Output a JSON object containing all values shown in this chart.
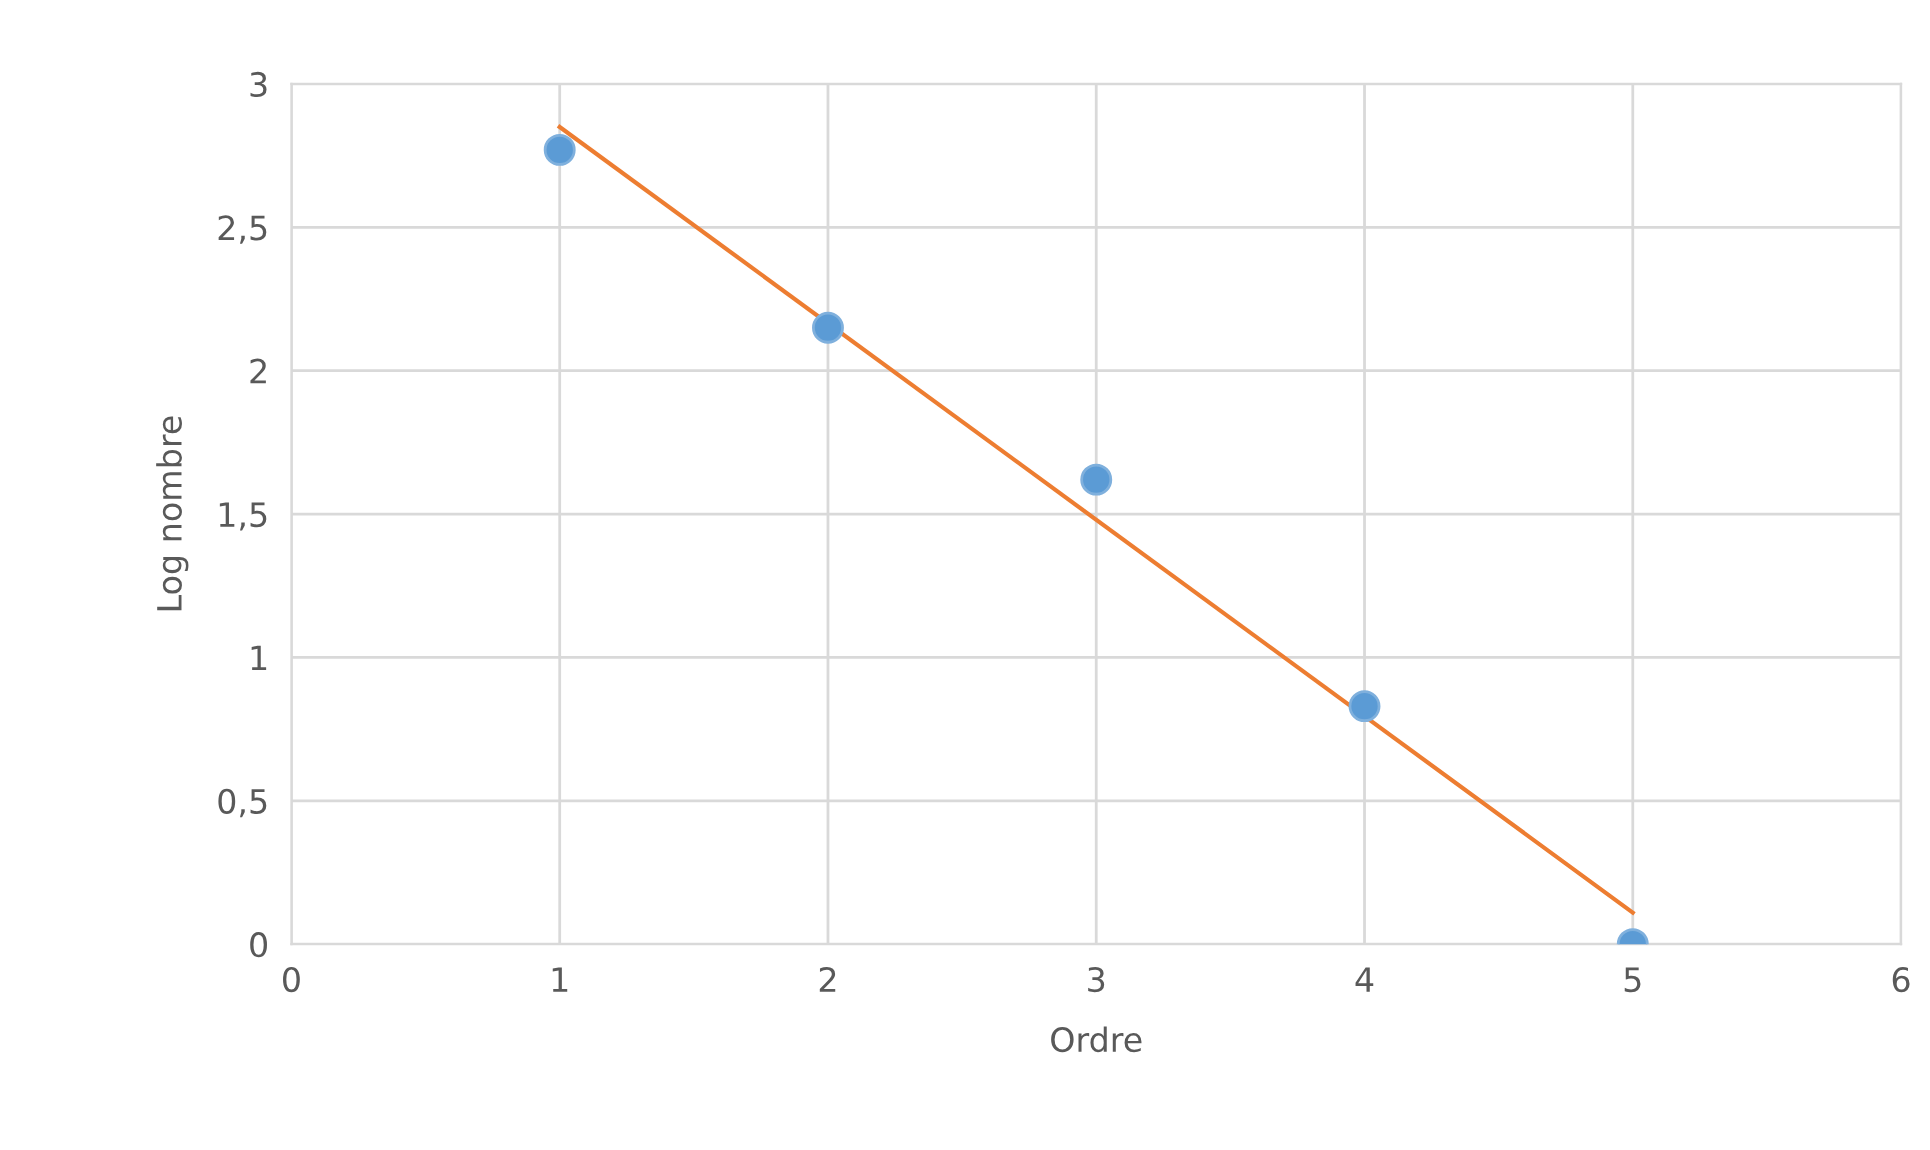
{
  "chart_data": {
    "type": "scatter",
    "xlabel": "Ordre",
    "ylabel": "Log nombre",
    "xlim": [
      0,
      6
    ],
    "xticks": [
      0,
      1,
      2,
      3,
      4,
      5,
      6
    ],
    "ylim": [
      0,
      3
    ],
    "yticks": [
      0,
      {
        "value": 0.5,
        "label": "0,5"
      },
      1,
      {
        "value": 1.5,
        "label": "1,5"
      },
      2,
      {
        "value": 2.5,
        "label": "2,5"
      },
      3
    ],
    "grid": true,
    "legend": false,
    "series": [
      {
        "color": "#5b9bd5",
        "marker": "circle",
        "x": [
          1,
          2,
          3,
          4,
          5
        ],
        "values": [
          2.77,
          2.15,
          1.62,
          0.83,
          0
        ]
      },
      {
        "type": "line",
        "color": "#ed7d31",
        "marker": "none",
        "line_style": "solid",
        "x": [
          1,
          5
        ],
        "values": [
          2.85,
          0.11
        ]
      }
    ]
  }
}
